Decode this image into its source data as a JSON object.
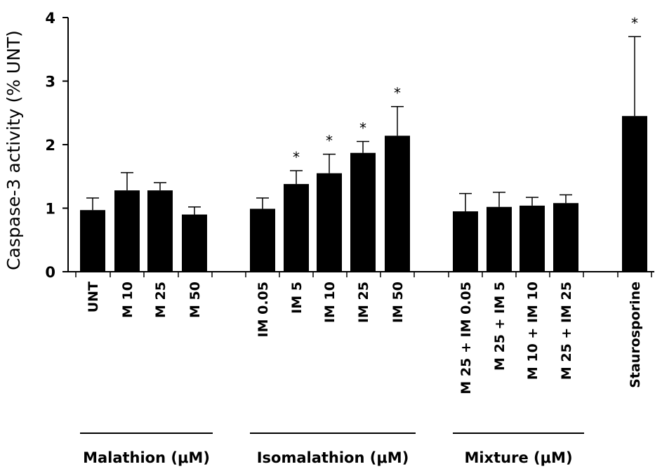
{
  "chart_data": {
    "type": "bar",
    "title": "",
    "xlabel": "",
    "ylabel": "Caspase-3 activity (% UNT)",
    "ylim": [
      0,
      4
    ],
    "yticks": [
      "0",
      "1",
      "2",
      "3",
      "4"
    ],
    "grid": false,
    "categories": [
      "UNT",
      "M 10",
      "M 25",
      "M 50",
      "IM 0.05",
      "IM 5",
      "IM 10",
      "IM 25",
      "IM 50",
      "M 25 + IM 0.05",
      "M 25 + IM 5",
      "M 10 + IM 10",
      "M 25 + IM 25",
      "Staurosporine"
    ],
    "values": [
      0.97,
      1.28,
      1.28,
      0.9,
      0.99,
      1.38,
      1.55,
      1.87,
      2.14,
      0.95,
      1.02,
      1.04,
      1.08,
      2.45
    ],
    "errors": [
      0.19,
      0.28,
      0.12,
      0.12,
      0.17,
      0.21,
      0.3,
      0.18,
      0.46,
      0.28,
      0.23,
      0.13,
      0.13,
      1.25
    ],
    "significance": [
      "",
      "",
      "",
      "",
      "",
      "*",
      "*",
      "*",
      "*",
      "",
      "",
      "",
      "",
      "*"
    ],
    "groups": [
      {
        "label": "Malathion (μM)",
        "start": 0,
        "end": 3
      },
      {
        "label": "Isomalathion (μM)",
        "start": 4,
        "end": 8
      },
      {
        "label": "Mixture (μM)",
        "start": 9,
        "end": 12
      }
    ],
    "bar_color": "#000000"
  }
}
